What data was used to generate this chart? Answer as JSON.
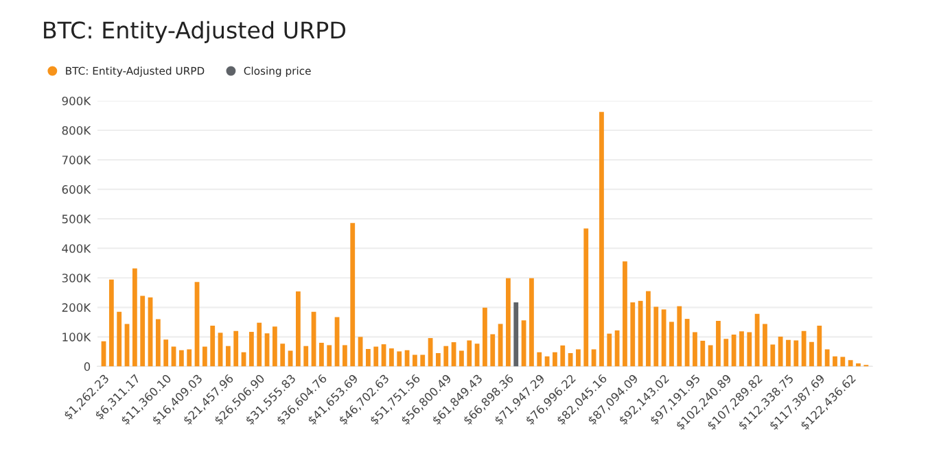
{
  "chart_data": {
    "type": "bar",
    "title": "BTC: Entity-Adjusted URPD",
    "categories": [
      "$1,262.23",
      null,
      null,
      null,
      "$6,311.17",
      null,
      null,
      null,
      "$11,360.10",
      null,
      null,
      null,
      "$16,409.03",
      null,
      null,
      null,
      "$21,457.96",
      null,
      null,
      null,
      "$26,506.90",
      null,
      null,
      null,
      "$31,555.83",
      null,
      null,
      null,
      "$36,604.76",
      null,
      null,
      null,
      "$41,653.69",
      null,
      null,
      null,
      "$46,702.63",
      null,
      null,
      null,
      "$51,751.56",
      null,
      null,
      null,
      "$56,800.49",
      null,
      null,
      null,
      "$61,849.43",
      null,
      null,
      null,
      "$66,898.36",
      null,
      null,
      null,
      "$71,947.29",
      null,
      null,
      null,
      "$76,996.22",
      null,
      null,
      null,
      "$82,045.16",
      null,
      null,
      null,
      "$87,094.09",
      null,
      null,
      null,
      "$92,143.02",
      null,
      null,
      null,
      "$97,191.95",
      null,
      null,
      null,
      "$102,240.89",
      null,
      null,
      null,
      "$107,289.82",
      null,
      null,
      null,
      "$112,338.75",
      null,
      null,
      null,
      "$117,387.69",
      null,
      null,
      null,
      "$122,436.62",
      null,
      null
    ],
    "stacked": true,
    "series": [
      {
        "name": "BTC: Entity-Adjusted URPD",
        "color": "#f7931a",
        "values": [
          85000,
          294000,
          185000,
          144000,
          332000,
          239000,
          234000,
          160000,
          91000,
          67000,
          55000,
          58000,
          286000,
          67000,
          138000,
          114000,
          69000,
          120000,
          48000,
          117000,
          148000,
          112000,
          135000,
          77000,
          53000,
          254000,
          69000,
          185000,
          80000,
          72000,
          167000,
          72000,
          486000,
          100000,
          59000,
          67000,
          75000,
          61000,
          51000,
          55000,
          39000,
          39000,
          96000,
          45000,
          69000,
          82000,
          53000,
          88000,
          77000,
          199000,
          109000,
          144000,
          299000,
          null,
          156000,
          299000,
          48000,
          34000,
          48000,
          71000,
          45000,
          58000,
          467000,
          58000,
          862000,
          111000,
          122000,
          356000,
          217000,
          222000,
          255000,
          202000,
          193000,
          151000,
          204000,
          161000,
          116000,
          87000,
          72000,
          154000,
          93000,
          108000,
          119000,
          116000,
          178000,
          144000,
          74000,
          101000,
          90000,
          88000,
          120000,
          83000,
          138000,
          58000,
          34000,
          32000,
          21000,
          10000,
          5000
        ]
      },
      {
        "name": "Closing price",
        "color": "#5f6368",
        "values": [
          null,
          null,
          null,
          null,
          null,
          null,
          null,
          null,
          null,
          null,
          null,
          null,
          null,
          null,
          null,
          null,
          null,
          null,
          null,
          null,
          null,
          null,
          null,
          null,
          null,
          null,
          null,
          null,
          null,
          null,
          null,
          null,
          null,
          null,
          null,
          null,
          null,
          null,
          null,
          null,
          null,
          null,
          null,
          null,
          null,
          null,
          null,
          null,
          null,
          null,
          null,
          null,
          null,
          217000,
          null,
          null,
          null,
          null,
          null,
          null,
          null,
          null,
          null,
          null,
          null,
          null,
          null,
          null,
          null,
          null,
          null,
          null,
          null,
          null,
          null,
          null,
          null,
          null,
          null,
          null,
          null,
          null,
          null,
          null,
          null,
          null,
          null,
          null,
          null,
          null,
          null,
          null,
          null,
          null,
          null,
          null,
          null,
          null,
          null
        ]
      }
    ],
    "ylim": [
      0,
      900000
    ],
    "yticks": [
      {
        "value": 0,
        "label": "0"
      },
      {
        "value": 100000,
        "label": "100K"
      },
      {
        "value": 200000,
        "label": "200K"
      },
      {
        "value": 300000,
        "label": "300K"
      },
      {
        "value": 400000,
        "label": "400K"
      },
      {
        "value": 500000,
        "label": "500K"
      },
      {
        "value": 600000,
        "label": "600K"
      },
      {
        "value": 700000,
        "label": "700K"
      },
      {
        "value": 800000,
        "label": "800K"
      },
      {
        "value": 900000,
        "label": "900K"
      }
    ],
    "grid": "y",
    "legend": "top left"
  }
}
